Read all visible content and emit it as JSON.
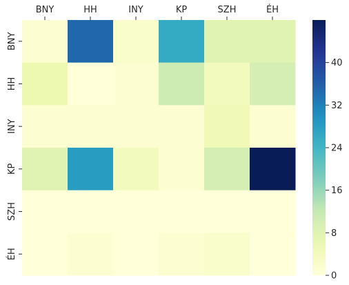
{
  "chart_data": {
    "type": "heatmap",
    "title": "",
    "xlabel": "",
    "ylabel": "",
    "x_categories": [
      "BNY",
      "HH",
      "INY",
      "KP",
      "SZH",
      "ÉH"
    ],
    "y_categories": [
      "BNY",
      "HH",
      "INY",
      "KP",
      "SZH",
      "ÉH"
    ],
    "values": [
      [
        1,
        35,
        2,
        26,
        8,
        8
      ],
      [
        6,
        0,
        1,
        11,
        4,
        10
      ],
      [
        1,
        1,
        1,
        1,
        5,
        1
      ],
      [
        8,
        28,
        4,
        1,
        10,
        48
      ],
      [
        0,
        0,
        0,
        0,
        0,
        0
      ],
      [
        0,
        1,
        0,
        1,
        2,
        0
      ]
    ],
    "colorscale": "YlGnBu",
    "vmin": 0,
    "vmax": 48,
    "colorbar_ticks": [
      "0",
      "8",
      "16",
      "24",
      "32",
      "40"
    ],
    "x_tick_position": "top",
    "grid": false,
    "legend": "colorbar-right"
  }
}
